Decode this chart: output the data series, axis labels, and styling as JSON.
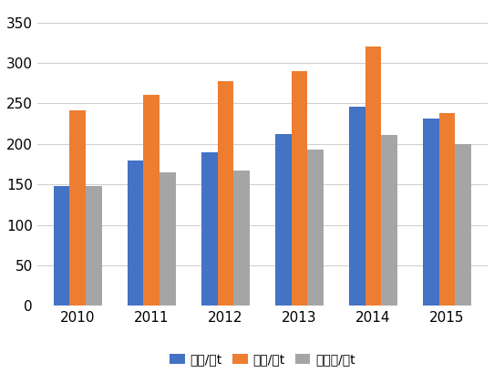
{
  "years": [
    "2010",
    "2011",
    "2012",
    "2013",
    "2014",
    "2015"
  ],
  "production": [
    148,
    180,
    190,
    212,
    246,
    231
  ],
  "capacity": [
    242,
    261,
    277,
    290,
    320,
    238
  ],
  "demand": [
    148,
    165,
    167,
    193,
    211,
    200
  ],
  "bar_colors": {
    "production": "#4472C4",
    "capacity": "#ED7D31",
    "demand": "#A5A5A5"
  },
  "legend_labels": [
    "产量/万t",
    "产能/万t",
    "需求量/万t"
  ],
  "ylim": [
    0,
    370
  ],
  "yticks": [
    0,
    50,
    100,
    150,
    200,
    250,
    300,
    350
  ],
  "background_color": "#FFFFFF",
  "grid_color": "#D0D0D0",
  "bar_width": 0.22,
  "figsize": [
    5.42,
    4.09
  ],
  "dpi": 100
}
